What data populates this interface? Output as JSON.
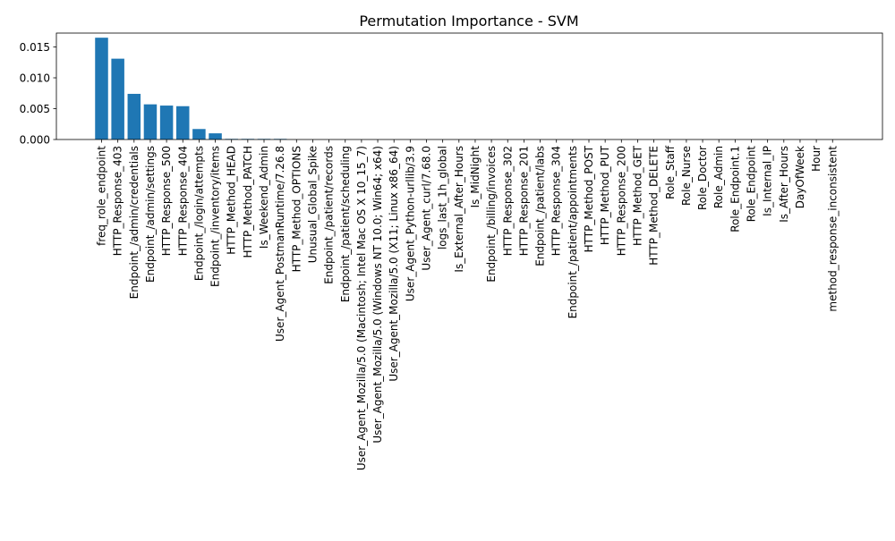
{
  "chart_data": {
    "type": "bar",
    "title": "Permutation Importance - SVM",
    "xlabel": "",
    "ylabel": "",
    "ylim": [
      0,
      0.01725
    ],
    "yticks": [
      "0.000",
      "0.005",
      "0.010",
      "0.015"
    ],
    "ytick_values": [
      0,
      0.005,
      0.01,
      0.015
    ],
    "bar_color": "#1f77b4",
    "grid": false,
    "legend": "none",
    "categories": [
      "freq_role_endpoint",
      "HTTP_Response_403",
      "Endpoint_/admin/credentials",
      "Endpoint_/admin/settings",
      "HTTP_Response_500",
      "HTTP_Response_404",
      "Endpoint_/login/attempts",
      "Endpoint_/inventory/items",
      "HTTP_Method_HEAD",
      "HTTP_Method_PATCH",
      "Is_Weekend_Admin",
      "User_Agent_PostmanRuntime/7.26.8",
      "HTTP_Method_OPTIONS",
      "Unusual_Global_Spike",
      "Endpoint_/patient/records",
      "Endpoint_/patient/scheduling",
      "User_Agent_Mozilla/5.0 (Macintosh; Intel Mac OS X 10_15_7)",
      "User_Agent_Mozilla/5.0 (Windows NT 10.0; Win64; x64)",
      "User_Agent_Mozilla/5.0 (X11; Linux x86_64)",
      "User_Agent_Python-urllib/3.9",
      "User_Agent_curl/7.68.0",
      "logs_last_1h_global",
      "Is_External_After_Hours",
      "Is_MidNight",
      "Endpoint_/billing/invoices",
      "HTTP_Response_302",
      "HTTP_Response_201",
      "Endpoint_/patient/labs",
      "HTTP_Response_304",
      "Endpoint_/patient/appointments",
      "HTTP_Method_POST",
      "HTTP_Method_PUT",
      "HTTP_Response_200",
      "HTTP_Method_GET",
      "HTTP_Method_DELETE",
      "Role_Staff",
      "Role_Nurse",
      "Role_Doctor",
      "Role_Admin",
      "Role_Endpoint.1",
      "Role_Endpoint",
      "Is_Internal_IP",
      "Is_After_Hours",
      "DayOfWeek",
      "Hour",
      "method_response_inconsistent"
    ],
    "values": [
      0.0165,
      0.0131,
      0.0074,
      0.0057,
      0.0055,
      0.0054,
      0.0017,
      0.001,
      0.0001,
      0.0001,
      0.0001,
      0.0001,
      0,
      0,
      0,
      0,
      0,
      0,
      0,
      0,
      0,
      0,
      0,
      0,
      0,
      0,
      0,
      0,
      0,
      0,
      0,
      0,
      0,
      0,
      0,
      0,
      0,
      0,
      0,
      0,
      0,
      0,
      0,
      0,
      0,
      0
    ]
  }
}
